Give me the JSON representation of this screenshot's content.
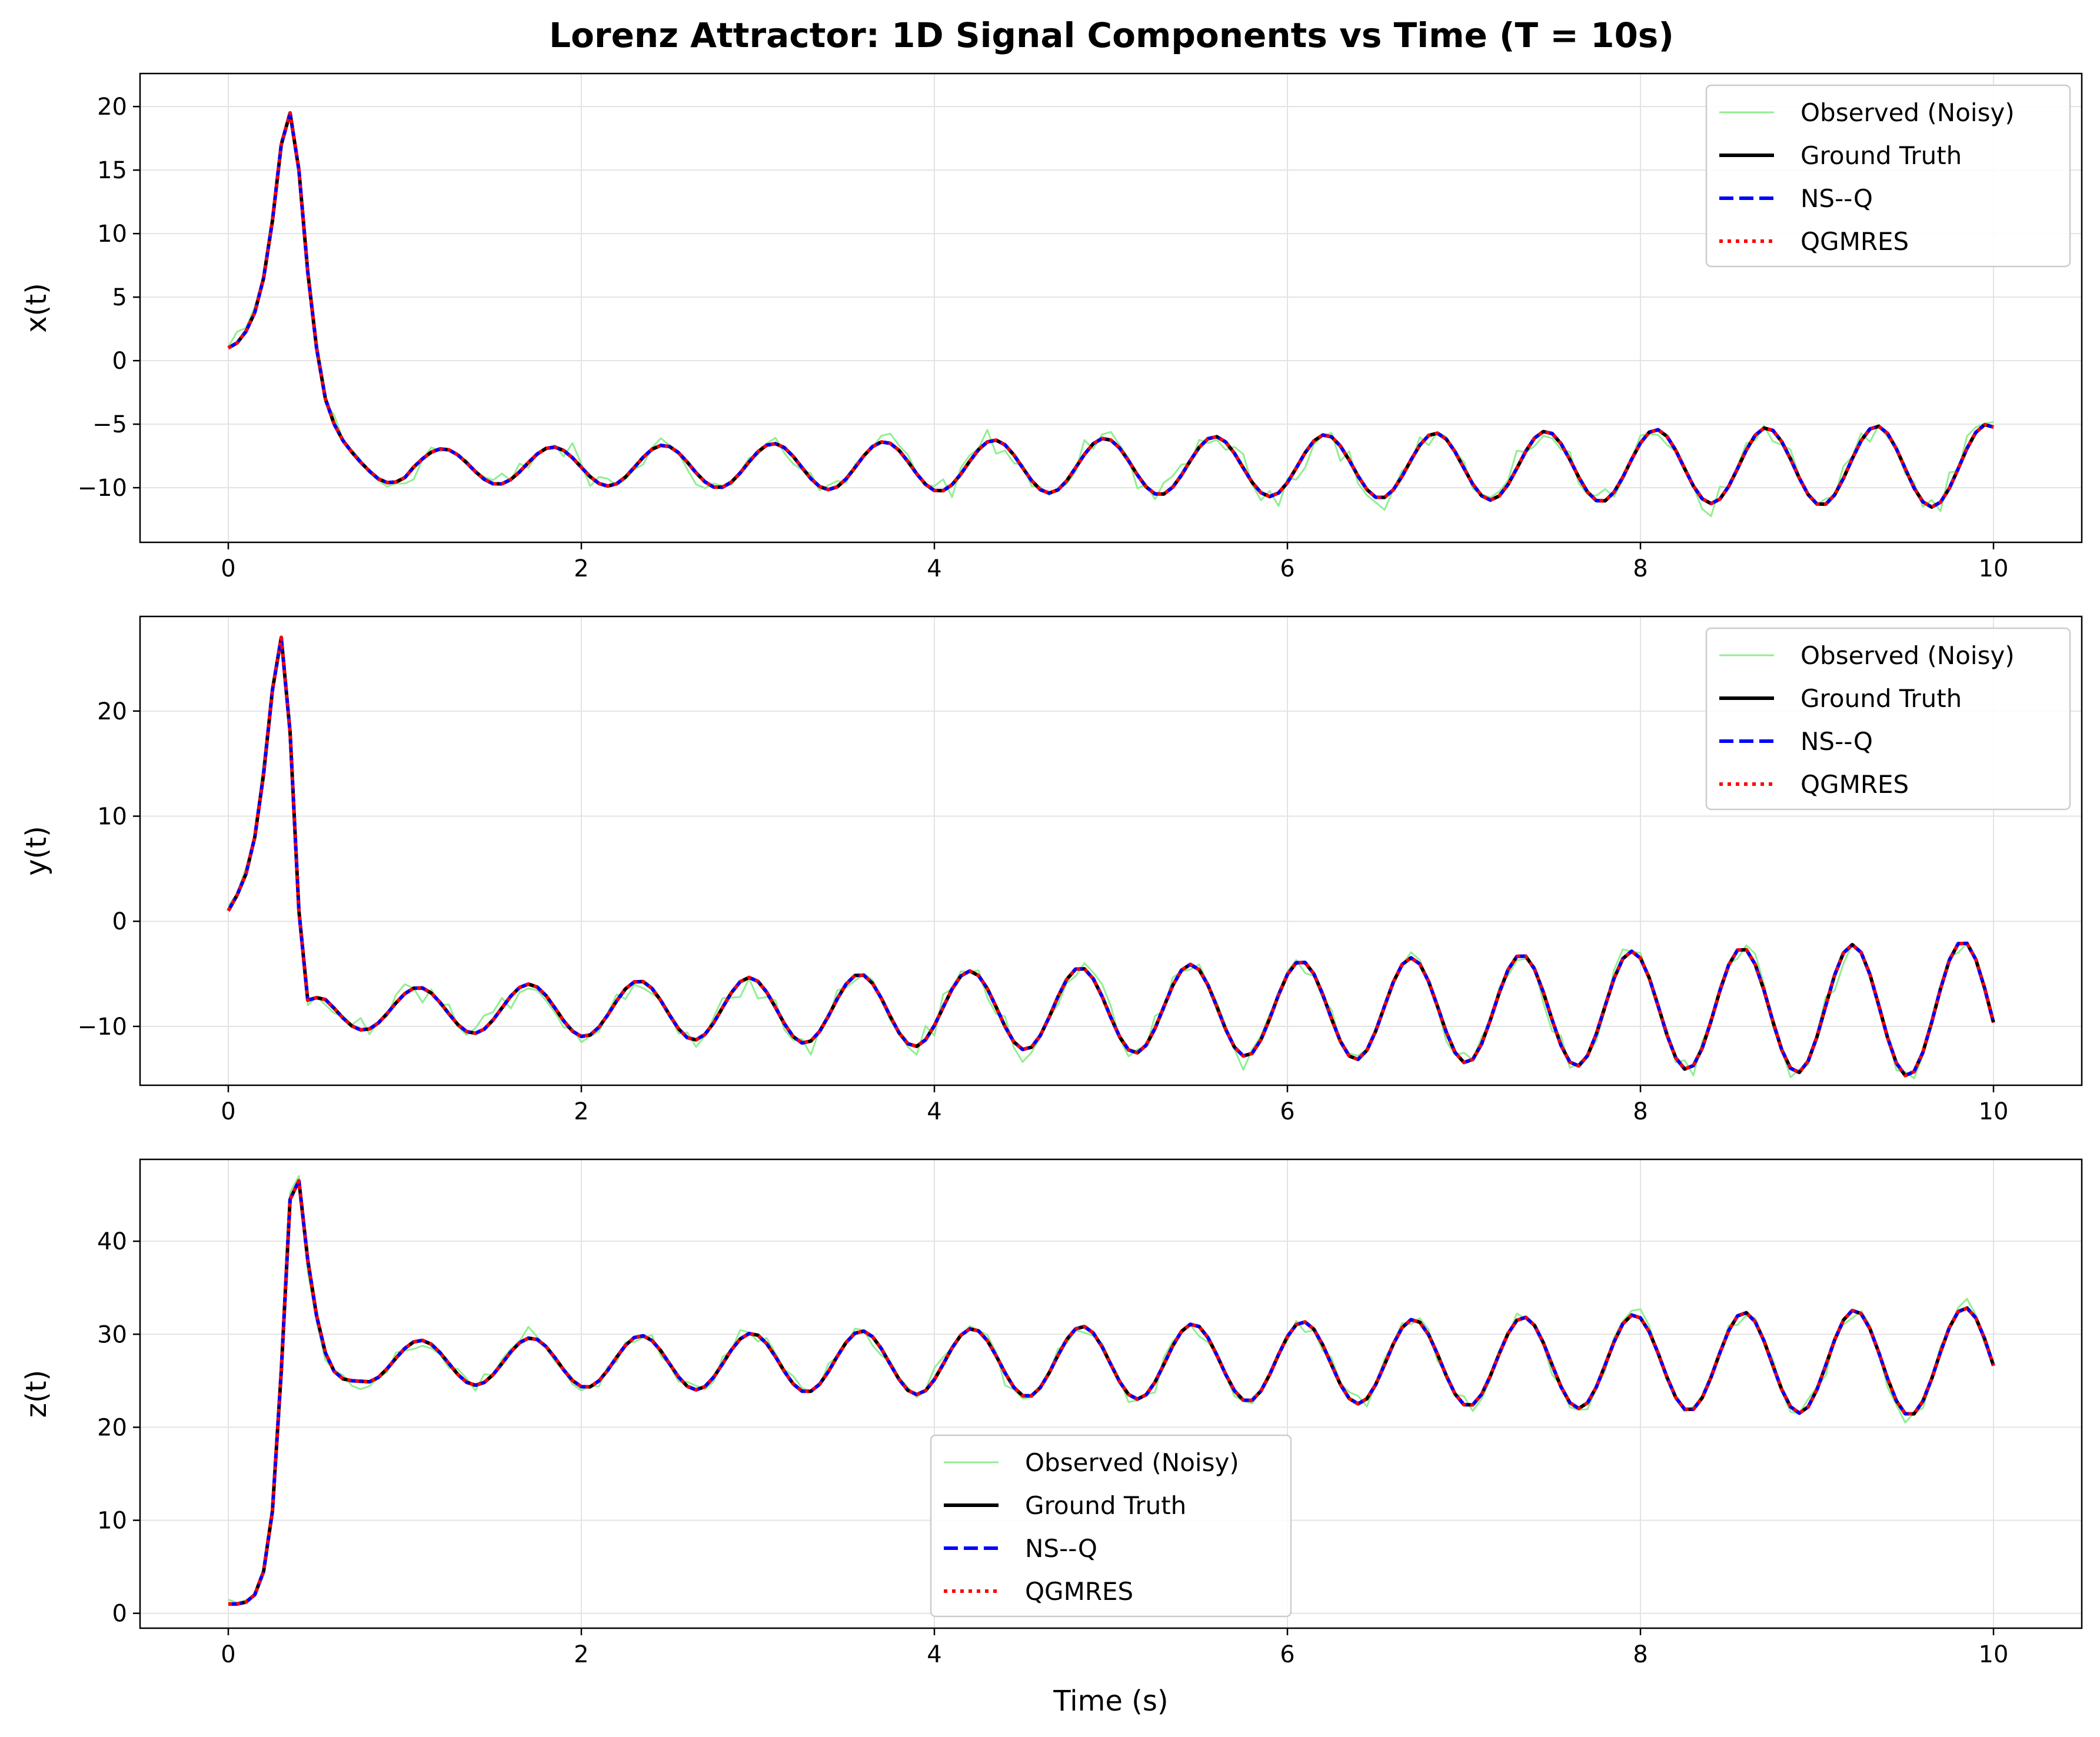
{
  "chart_data": [
    {
      "type": "line",
      "title": "Lorenz Attractor: 1D Signal Components vs Time (T = 10s)",
      "xlabel": "",
      "ylabel": "x(t)",
      "xlim": [
        -0.5,
        10.5
      ],
      "ylim": [
        -14.3,
        22.6
      ],
      "xticks": [
        0,
        2,
        4,
        6,
        8,
        10
      ],
      "yticks": [
        -10,
        -5,
        0,
        5,
        10,
        15,
        20
      ],
      "grid": true,
      "legend": "top-right",
      "wave": {
        "start": 0.9,
        "base": -8.3,
        "amp0": 1.3,
        "amp_growth": 0.22,
        "period": 0.625,
        "phase": 3.14159
      },
      "peak": [
        [
          0,
          1.0
        ],
        [
          0.05,
          1.4
        ],
        [
          0.1,
          2.3
        ],
        [
          0.15,
          3.8
        ],
        [
          0.2,
          6.5
        ],
        [
          0.25,
          11
        ],
        [
          0.3,
          17
        ],
        [
          0.35,
          19.5
        ],
        [
          0.4,
          15
        ],
        [
          0.45,
          7
        ],
        [
          0.5,
          1
        ],
        [
          0.55,
          -3
        ],
        [
          0.6,
          -5
        ],
        [
          0.65,
          -6.3
        ],
        [
          0.7,
          -7.2
        ],
        [
          0.75,
          -8
        ],
        [
          0.8,
          -8.7
        ],
        [
          0.85,
          -9.3
        ],
        [
          0.9,
          -9.6
        ]
      ],
      "noise": 0.9,
      "series": [
        {
          "name": "Observed (Noisy)",
          "color": "#90ee90",
          "style": "solid"
        },
        {
          "name": "Ground Truth",
          "color": "#000000",
          "style": "solid"
        },
        {
          "name": "NS--Q",
          "color": "#0000ff",
          "style": "dashed"
        },
        {
          "name": "QGMRES",
          "color": "#ff0000",
          "style": "dotted"
        }
      ]
    },
    {
      "type": "line",
      "title": "",
      "xlabel": "",
      "ylabel": "y(t)",
      "xlim": [
        -0.5,
        10.5
      ],
      "ylim": [
        -15.6,
        29.0
      ],
      "xticks": [
        0,
        2,
        4,
        6,
        8,
        10
      ],
      "yticks": [
        -10,
        0,
        10,
        20
      ],
      "grid": true,
      "legend": "top-right",
      "wave": {
        "start": 0.45,
        "base": -8.4,
        "amp0": 1.8,
        "amp_growth": 0.5,
        "period": 0.625,
        "phase": 0.0
      },
      "peak": [
        [
          0,
          1.0
        ],
        [
          0.05,
          2.5
        ],
        [
          0.1,
          4.5
        ],
        [
          0.15,
          8
        ],
        [
          0.2,
          14
        ],
        [
          0.25,
          22
        ],
        [
          0.3,
          27
        ],
        [
          0.35,
          18
        ],
        [
          0.4,
          1
        ],
        [
          0.45,
          -7.5
        ]
      ],
      "noise": 1.0,
      "series": [
        {
          "name": "Observed (Noisy)",
          "color": "#90ee90",
          "style": "solid"
        },
        {
          "name": "Ground Truth",
          "color": "#000000",
          "style": "solid"
        },
        {
          "name": "NS--Q",
          "color": "#0000ff",
          "style": "dashed"
        },
        {
          "name": "QGMRES",
          "color": "#ff0000",
          "style": "dotted"
        }
      ]
    },
    {
      "type": "line",
      "title": "",
      "xlabel": "Time (s)",
      "ylabel": "z(t)",
      "xlim": [
        -0.5,
        10.5
      ],
      "ylim": [
        -1.6,
        48.8
      ],
      "xticks": [
        0,
        2,
        4,
        6,
        8,
        10
      ],
      "yticks": [
        0,
        10,
        20,
        30,
        40
      ],
      "grid": true,
      "legend": "bottom-center",
      "wave": {
        "start": 0.7,
        "base": 27.0,
        "amp0": 2.2,
        "amp_growth": 0.4,
        "period": 0.625,
        "phase": 2.39
      },
      "peak": [
        [
          0,
          1.0
        ],
        [
          0.05,
          1.0
        ],
        [
          0.1,
          1.2
        ],
        [
          0.15,
          2
        ],
        [
          0.2,
          4.5
        ],
        [
          0.25,
          11
        ],
        [
          0.3,
          26
        ],
        [
          0.35,
          44.5
        ],
        [
          0.4,
          46.5
        ],
        [
          0.45,
          38
        ],
        [
          0.5,
          32
        ],
        [
          0.55,
          28
        ],
        [
          0.6,
          26
        ],
        [
          0.65,
          25.2
        ],
        [
          0.7,
          25
        ]
      ],
      "noise": 0.9,
      "series": [
        {
          "name": "Observed (Noisy)",
          "color": "#90ee90",
          "style": "solid"
        },
        {
          "name": "Ground Truth",
          "color": "#000000",
          "style": "solid"
        },
        {
          "name": "NS--Q",
          "color": "#0000ff",
          "style": "dashed"
        },
        {
          "name": "QGMRES",
          "color": "#ff0000",
          "style": "dotted"
        }
      ]
    }
  ]
}
